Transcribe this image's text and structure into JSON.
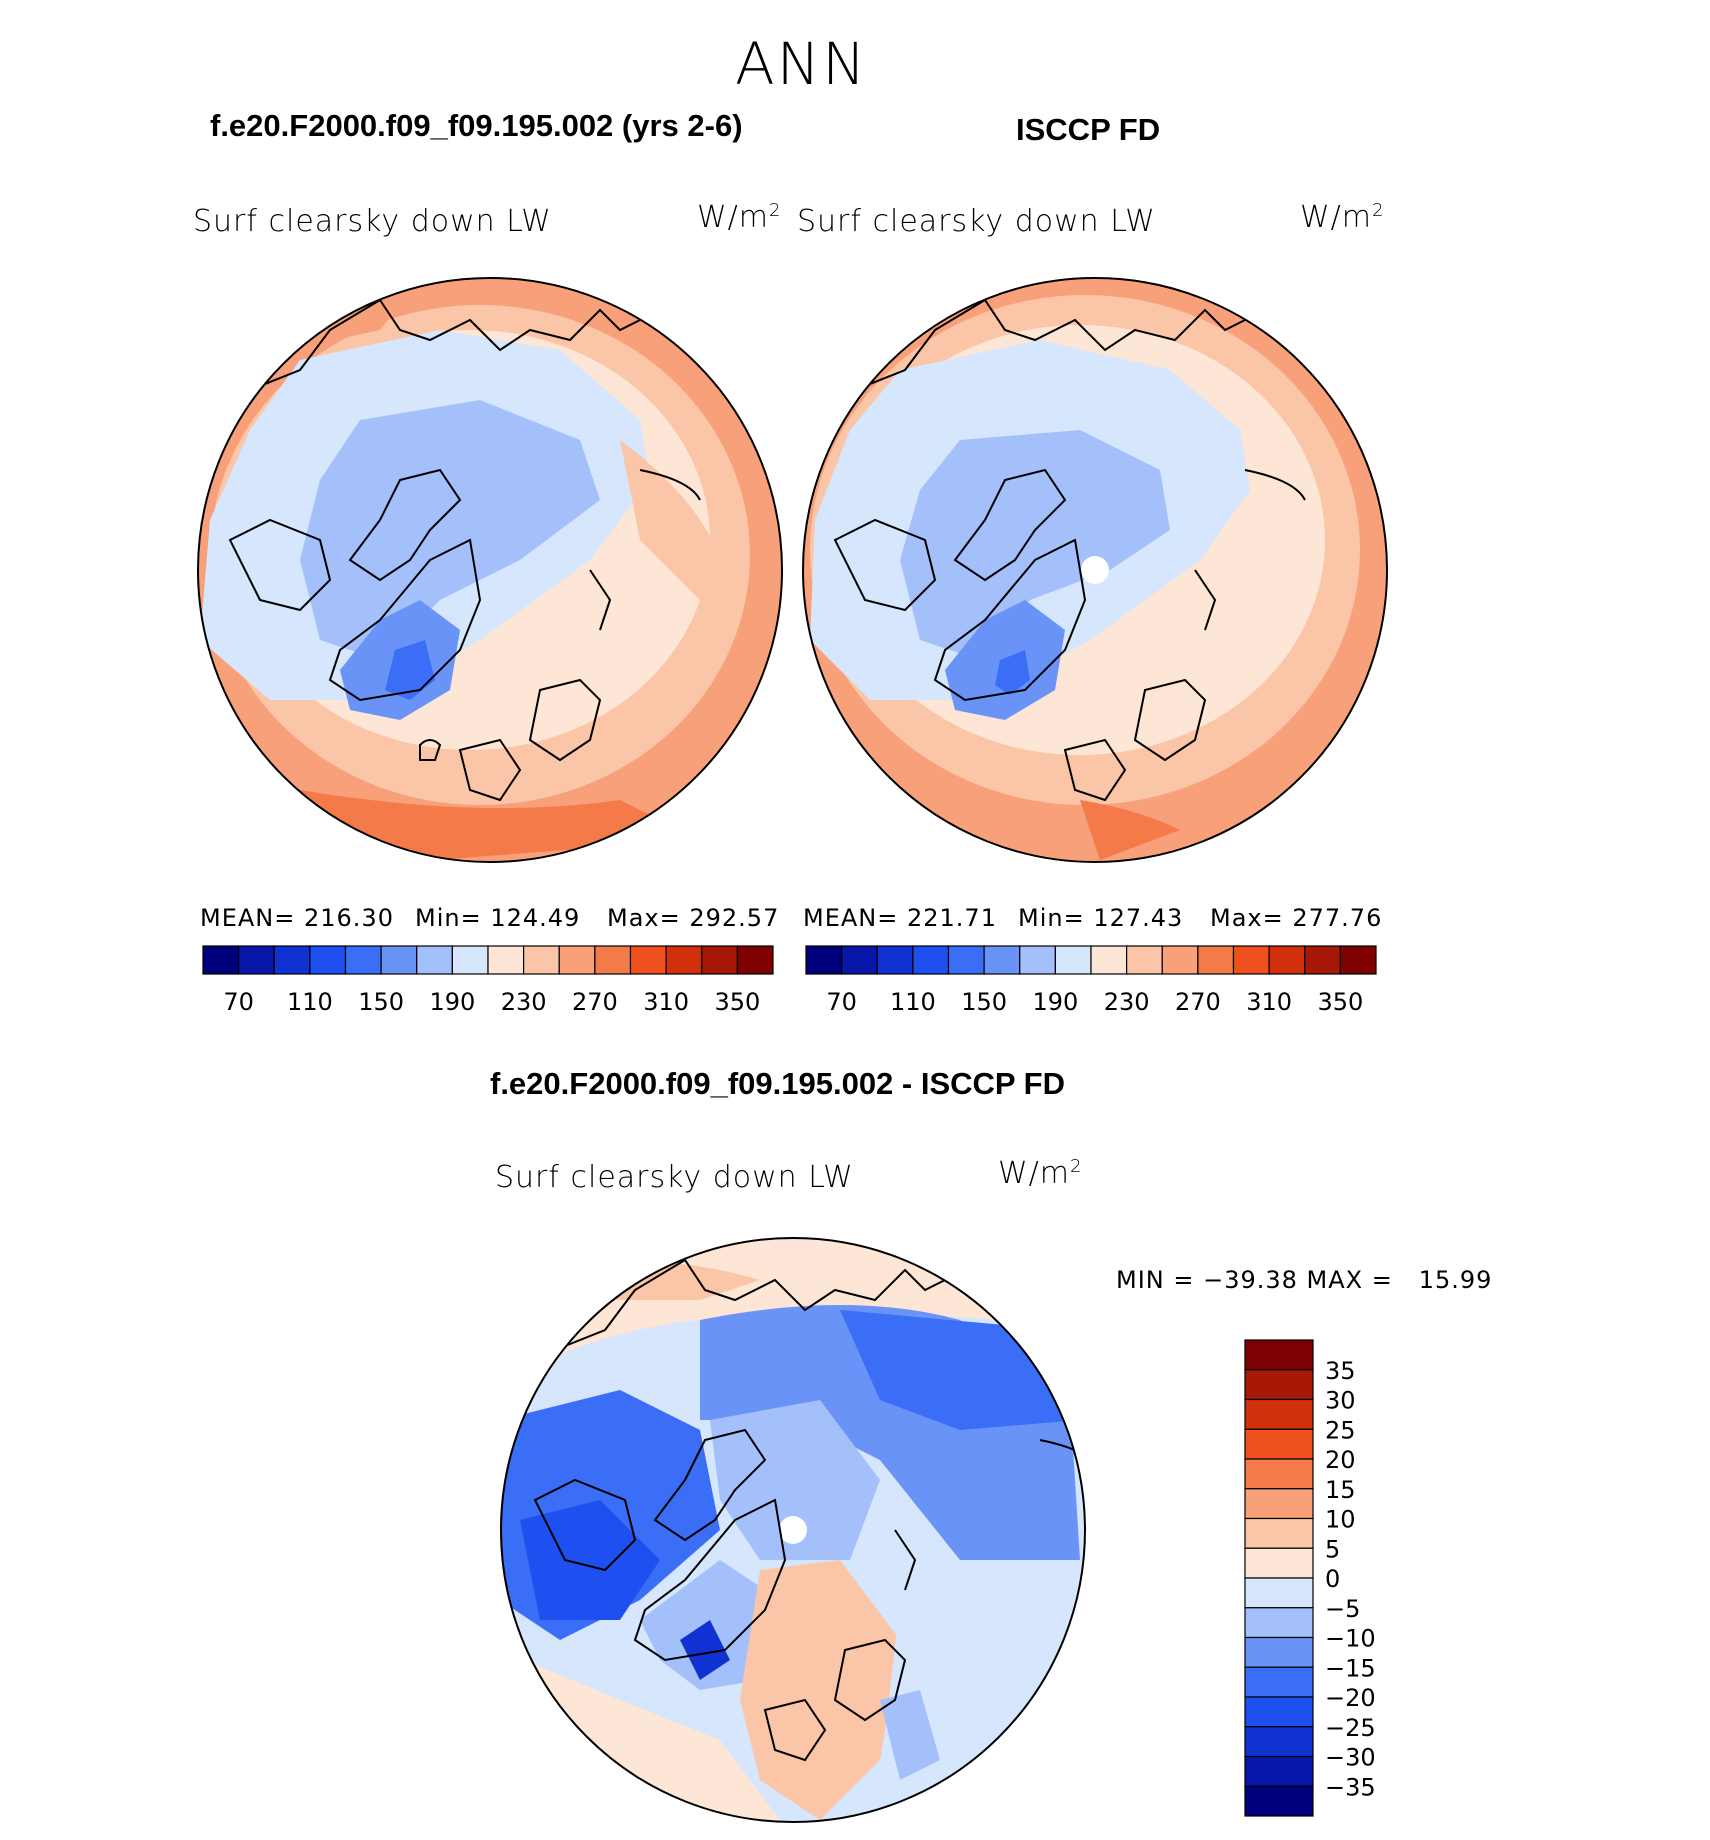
{
  "season": "ANN",
  "panels": [
    {
      "title": "f.e20.F2000.f09_f09.195.002 (yrs 2-6)",
      "variable": "Surf clearsky down LW",
      "units_base": "W/m",
      "units_exp": "2",
      "stats": {
        "mean": "MEAN= 216.30",
        "min": "Min= 124.49",
        "max": "Max= 292.57"
      }
    },
    {
      "title": "ISCCP FD",
      "variable": "Surf clearsky down LW",
      "units_base": "W/m",
      "units_exp": "2",
      "stats": {
        "mean": "MEAN= 221.71",
        "min": "Min= 127.43",
        "max": "Max= 277.76"
      }
    },
    {
      "title": "f.e20.F2000.f09_f09.195.002 - ISCCP FD",
      "variable": "Surf clearsky down LW",
      "units_base": "W/m",
      "units_exp": "2",
      "stats": {
        "minmax": "MIN = −39.38 MAX =   15.99"
      }
    }
  ],
  "colorbar_abs": {
    "colors": [
      "#00007f",
      "#0516a8",
      "#1032d2",
      "#1e4ff0",
      "#3b6ef6",
      "#6a93f8",
      "#a4c0fb",
      "#d5e6fd",
      "#fde6d5",
      "#fbc6a8",
      "#f8a07a",
      "#f47a4a",
      "#f0501e",
      "#d2300a",
      "#a81806",
      "#7f0000"
    ],
    "tick_labels": [
      "70",
      "110",
      "150",
      "190",
      "230",
      "270",
      "310",
      "350"
    ]
  },
  "colorbar_diff": {
    "colors": [
      "#7f0000",
      "#a81806",
      "#d2300a",
      "#f0501e",
      "#f47a4a",
      "#f8a07a",
      "#fbc6a8",
      "#fde6d5",
      "#d5e6fd",
      "#a4c0fb",
      "#6a93f8",
      "#3b6ef6",
      "#1e4ff0",
      "#1032d2",
      "#0516a8",
      "#00007f"
    ],
    "tick_labels": [
      "35",
      "30",
      "25",
      "20",
      "15",
      "10",
      "5",
      "0",
      "−5",
      "−10",
      "−15",
      "−20",
      "−25",
      "−30",
      "−35"
    ]
  },
  "chart_data": [
    {
      "type": "heatmap",
      "title": "f.e20.F2000.f09_f09.195.002 (yrs 2-6)",
      "subtitle": "Surf clearsky down LW",
      "units": "W/m2",
      "projection": "north polar stereographic",
      "mean": 216.3,
      "min": 124.49,
      "max": 292.57,
      "color_levels": [
        70,
        90,
        110,
        130,
        150,
        170,
        190,
        210,
        230,
        250,
        270,
        290,
        310,
        330,
        350
      ]
    },
    {
      "type": "heatmap",
      "title": "ISCCP FD",
      "subtitle": "Surf clearsky down LW",
      "units": "W/m2",
      "projection": "north polar stereographic",
      "mean": 221.71,
      "min": 127.43,
      "max": 277.76,
      "color_levels": [
        70,
        90,
        110,
        130,
        150,
        170,
        190,
        210,
        230,
        250,
        270,
        290,
        310,
        330,
        350
      ]
    },
    {
      "type": "heatmap",
      "title": "f.e20.F2000.f09_f09.195.002 - ISCCP FD",
      "subtitle": "Surf clearsky down LW",
      "units": "W/m2",
      "projection": "north polar stereographic",
      "min": -39.38,
      "max": 15.99,
      "color_levels": [
        35,
        30,
        25,
        20,
        15,
        10,
        5,
        0,
        -5,
        -10,
        -15,
        -20,
        -25,
        -30,
        -35
      ]
    }
  ]
}
